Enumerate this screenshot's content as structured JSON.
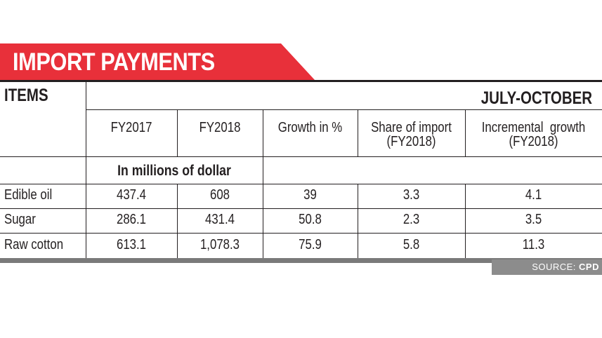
{
  "title": "IMPORT PAYMENTS",
  "header": {
    "items": "ITEMS",
    "period": "JULY-OCTOBER"
  },
  "columns": [
    {
      "line1": "FY2017",
      "line2": ""
    },
    {
      "line1": "FY2018",
      "line2": ""
    },
    {
      "line1": "Growth in %",
      "line2": ""
    },
    {
      "line1": "Share of import",
      "line2": "(FY2018)"
    },
    {
      "line1": "Incremental  growth",
      "line2": "(FY2018)"
    }
  ],
  "unit_note": "In millions of dollar",
  "rows": [
    {
      "item": "Edible oil",
      "values": [
        "437.4",
        "608",
        "39",
        "3.3",
        "4.1"
      ]
    },
    {
      "item": "Sugar",
      "values": [
        "286.1",
        "431.4",
        "50.8",
        "2.3",
        "3.5"
      ]
    },
    {
      "item": "Raw cotton",
      "values": [
        "613.1",
        "1,078.3",
        "75.9",
        "5.8",
        "11.3"
      ]
    }
  ],
  "source": {
    "label": "SOURCE:",
    "value": "CPD"
  },
  "colors": {
    "banner": "#e8303a",
    "text": "#231f20",
    "source_bg": "#8c8c8c"
  }
}
